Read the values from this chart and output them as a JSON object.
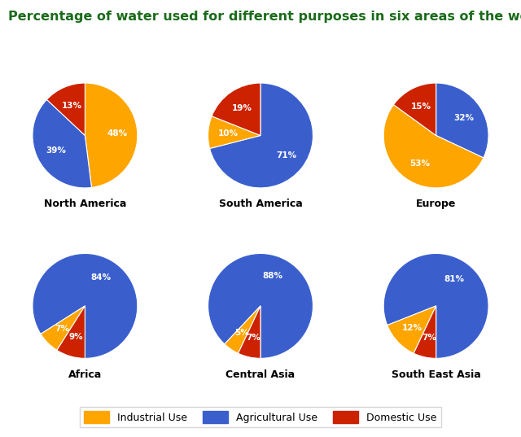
{
  "title": "Percentage of water used for different purposes in six areas of the world.",
  "title_color": "#1a6b1a",
  "title_fontsize": 11.5,
  "background_color": "#ffffff",
  "colors": {
    "Industrial": "#FFA500",
    "Agricultural": "#3A5FCD",
    "Domestic": "#CC2200"
  },
  "regions": [
    {
      "name": "North America",
      "values": [
        48,
        39,
        13
      ],
      "labels": [
        "48%",
        "39%",
        "13%"
      ],
      "order": [
        "Industrial",
        "Agricultural",
        "Domestic"
      ],
      "startangle": 90,
      "counterclock": false
    },
    {
      "name": "South America",
      "values": [
        71,
        10,
        19
      ],
      "labels": [
        "71%",
        "10%",
        "19%"
      ],
      "order": [
        "Agricultural",
        "Industrial",
        "Domestic"
      ],
      "startangle": 90,
      "counterclock": false
    },
    {
      "name": "Europe",
      "values": [
        32,
        53,
        15
      ],
      "labels": [
        "32%",
        "53%",
        "15%"
      ],
      "order": [
        "Agricultural",
        "Industrial",
        "Domestic"
      ],
      "startangle": 90,
      "counterclock": false
    },
    {
      "name": "Africa",
      "values": [
        84,
        7,
        9
      ],
      "labels": [
        "84%",
        "7%",
        "9%"
      ],
      "order": [
        "Agricultural",
        "Industrial",
        "Domestic"
      ],
      "startangle": 270,
      "counterclock": true
    },
    {
      "name": "Central Asia",
      "values": [
        88,
        5,
        7
      ],
      "labels": [
        "88%",
        "5%",
        "7%"
      ],
      "order": [
        "Agricultural",
        "Industrial",
        "Domestic"
      ],
      "startangle": 270,
      "counterclock": true
    },
    {
      "name": "South East Asia",
      "values": [
        81,
        12,
        7
      ],
      "labels": [
        "81%",
        "12%",
        "7%"
      ],
      "order": [
        "Agricultural",
        "Industrial",
        "Domestic"
      ],
      "startangle": 270,
      "counterclock": true
    }
  ],
  "legend_labels": [
    "Industrial Use",
    "Agricultural Use",
    "Domestic Use"
  ],
  "legend_colors": [
    "#FFA500",
    "#3A5FCD",
    "#CC2200"
  ]
}
